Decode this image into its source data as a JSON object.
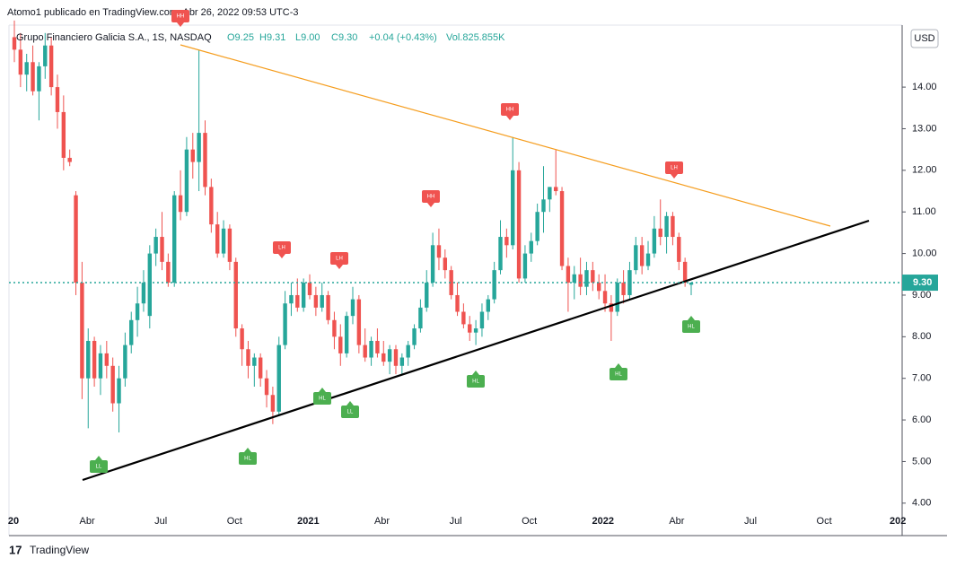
{
  "chart_data": {
    "type": "candlestick",
    "watermark": "Atomo1 publicado en TradingView.com, Abr 26, 2022 09:53 UTC-3",
    "symbol": "Grupo Financiero Galicia S.A., 1S, NASDAQ",
    "ohlc_text": [
      "O9.25",
      "H9.31",
      "L9.00",
      "C9.30",
      "+0.04 (+0.43%)",
      "Vol.825.855K"
    ],
    "currency": "USD",
    "brand": "TradingView",
    "up_color": "#26a69a",
    "down_color": "#ef5350",
    "ylim": [
      3.22,
      15.49
    ],
    "yticks": [
      {
        "value": 4,
        "label": "4.00"
      },
      {
        "value": 5,
        "label": "5.00"
      },
      {
        "value": 6,
        "label": "6.00"
      },
      {
        "value": 7,
        "label": "7.00"
      },
      {
        "value": 8,
        "label": "8.00"
      },
      {
        "value": 9,
        "label": "9.00"
      },
      {
        "value": 10,
        "label": "10.00"
      },
      {
        "value": 11,
        "label": "11.00"
      },
      {
        "value": 12,
        "label": "12.00"
      },
      {
        "value": 13,
        "label": "13.00"
      },
      {
        "value": 14,
        "label": "14.00"
      }
    ],
    "xtick_labels": [
      "20",
      "Abr",
      "Jul",
      "Oct",
      "2021",
      "Abr",
      "Jul",
      "Oct",
      "2022",
      "Abr",
      "Jul",
      "Oct",
      "202"
    ],
    "current_price": {
      "value": 9.3,
      "label": "9.30"
    },
    "annotations": [
      "HH",
      "LH",
      "LH",
      "HH",
      "HH",
      "LH",
      "LL",
      "HL",
      "HL",
      "LL",
      "HL",
      "HL",
      "HL"
    ],
    "candles": [
      [
        15.2,
        15.6,
        14.6,
        14.9
      ],
      [
        14.9,
        15.3,
        14.0,
        14.3
      ],
      [
        14.3,
        14.8,
        13.9,
        14.6
      ],
      [
        14.6,
        15.0,
        13.8,
        13.9
      ],
      [
        13.9,
        14.6,
        13.2,
        14.5
      ],
      [
        14.5,
        15.3,
        14.2,
        15.0
      ],
      [
        15.0,
        15.2,
        13.8,
        14.0
      ],
      [
        14.0,
        14.3,
        13.0,
        13.4
      ],
      [
        13.4,
        13.8,
        12.0,
        12.3
      ],
      [
        12.3,
        12.5,
        12.1,
        12.2
      ],
      [
        11.4,
        11.5,
        9.0,
        9.3
      ],
      [
        9.3,
        9.8,
        6.5,
        7.0
      ],
      [
        7.0,
        8.2,
        5.8,
        7.9
      ],
      [
        7.9,
        8.0,
        6.8,
        7.0
      ],
      [
        7.0,
        7.8,
        6.6,
        7.6
      ],
      [
        7.6,
        7.9,
        7.0,
        7.3
      ],
      [
        7.3,
        7.5,
        6.2,
        6.4
      ],
      [
        6.4,
        7.3,
        5.7,
        7.0
      ],
      [
        7.0,
        8.1,
        6.8,
        7.8
      ],
      [
        7.8,
        8.6,
        7.6,
        8.4
      ],
      [
        8.4,
        9.2,
        8.0,
        8.8
      ],
      [
        8.8,
        9.6,
        8.6,
        9.3
      ],
      [
        8.5,
        10.2,
        8.2,
        10.0
      ],
      [
        10.0,
        10.6,
        9.7,
        10.4
      ],
      [
        10.4,
        11.0,
        9.6,
        9.8
      ],
      [
        9.8,
        10.0,
        9.2,
        9.3
      ],
      [
        9.3,
        11.5,
        9.2,
        11.4
      ],
      [
        11.4,
        12.0,
        10.8,
        11.0
      ],
      [
        11.0,
        12.8,
        10.9,
        12.5
      ],
      [
        12.5,
        12.9,
        11.8,
        12.2
      ],
      [
        12.2,
        14.9,
        11.5,
        12.9
      ],
      [
        12.9,
        13.2,
        11.4,
        11.6
      ],
      [
        11.6,
        11.8,
        10.5,
        10.7
      ],
      [
        10.7,
        11.0,
        9.9,
        10.0
      ],
      [
        10.0,
        10.8,
        9.9,
        10.6
      ],
      [
        10.6,
        10.7,
        9.6,
        9.8
      ],
      [
        9.8,
        9.9,
        8.0,
        8.2
      ],
      [
        8.2,
        8.3,
        7.3,
        7.7
      ],
      [
        7.7,
        7.9,
        7.0,
        7.3
      ],
      [
        7.3,
        7.6,
        6.8,
        7.5
      ],
      [
        7.5,
        7.6,
        6.8,
        7.0
      ],
      [
        7.0,
        7.2,
        6.3,
        6.6
      ],
      [
        6.6,
        6.8,
        5.9,
        6.2
      ],
      [
        6.2,
        8.0,
        6.1,
        7.8
      ],
      [
        7.8,
        9.1,
        7.7,
        8.8
      ],
      [
        8.8,
        9.3,
        8.5,
        9.0
      ],
      [
        9.0,
        9.4,
        8.6,
        8.7
      ],
      [
        8.7,
        9.4,
        8.6,
        9.3
      ],
      [
        9.3,
        9.5,
        8.9,
        9.0
      ],
      [
        9.0,
        9.2,
        8.5,
        8.7
      ],
      [
        8.7,
        9.3,
        8.6,
        9.0
      ],
      [
        9.0,
        9.1,
        8.3,
        8.4
      ],
      [
        8.4,
        8.6,
        7.7,
        8.0
      ],
      [
        8.0,
        8.3,
        7.3,
        7.6
      ],
      [
        7.6,
        8.6,
        7.5,
        8.5
      ],
      [
        8.5,
        9.2,
        8.3,
        8.9
      ],
      [
        8.9,
        9.0,
        7.6,
        7.8
      ],
      [
        7.8,
        8.2,
        7.4,
        7.5
      ],
      [
        7.5,
        8.0,
        7.3,
        7.9
      ],
      [
        7.9,
        8.2,
        7.5,
        7.6
      ],
      [
        7.6,
        7.9,
        7.3,
        7.4
      ],
      [
        7.4,
        7.8,
        7.1,
        7.7
      ],
      [
        7.7,
        7.8,
        7.1,
        7.3
      ],
      [
        7.3,
        7.6,
        7.1,
        7.5
      ],
      [
        7.5,
        7.9,
        7.3,
        7.8
      ],
      [
        7.8,
        8.3,
        7.7,
        8.2
      ],
      [
        8.2,
        8.9,
        8.1,
        8.7
      ],
      [
        8.7,
        9.6,
        8.6,
        9.3
      ],
      [
        9.3,
        10.5,
        9.2,
        10.2
      ],
      [
        10.2,
        10.6,
        9.6,
        9.9
      ],
      [
        9.9,
        10.1,
        9.4,
        9.6
      ],
      [
        9.6,
        9.7,
        8.9,
        9.0
      ],
      [
        9.0,
        9.3,
        8.5,
        8.6
      ],
      [
        8.6,
        8.8,
        8.2,
        8.3
      ],
      [
        8.3,
        8.5,
        7.9,
        8.1
      ],
      [
        8.1,
        8.4,
        7.8,
        8.2
      ],
      [
        8.2,
        8.8,
        8.0,
        8.6
      ],
      [
        8.6,
        9.0,
        8.4,
        8.9
      ],
      [
        8.9,
        9.8,
        8.8,
        9.6
      ],
      [
        9.6,
        10.8,
        9.5,
        10.4
      ],
      [
        10.4,
        10.6,
        9.9,
        10.2
      ],
      [
        10.2,
        12.8,
        10.1,
        12.0
      ],
      [
        12.0,
        12.2,
        9.3,
        9.4
      ],
      [
        9.4,
        10.2,
        9.3,
        10.0
      ],
      [
        10.0,
        10.5,
        9.8,
        10.3
      ],
      [
        10.3,
        11.2,
        10.2,
        11.0
      ],
      [
        11.0,
        12.1,
        10.5,
        11.3
      ],
      [
        11.3,
        11.6,
        11.0,
        11.6
      ],
      [
        11.6,
        12.5,
        11.4,
        11.5
      ],
      [
        11.5,
        11.6,
        9.6,
        9.7
      ],
      [
        9.7,
        9.9,
        8.6,
        9.3
      ],
      [
        9.3,
        9.7,
        8.9,
        9.5
      ],
      [
        9.5,
        9.9,
        9.0,
        9.2
      ],
      [
        9.2,
        9.8,
        9.0,
        9.6
      ],
      [
        9.6,
        9.8,
        9.1,
        9.3
      ],
      [
        9.3,
        9.5,
        8.9,
        9.1
      ],
      [
        9.1,
        9.5,
        8.6,
        8.8
      ],
      [
        8.8,
        9.0,
        7.9,
        8.6
      ],
      [
        8.6,
        9.4,
        8.5,
        9.3
      ],
      [
        9.3,
        9.6,
        8.8,
        9.0
      ],
      [
        9.0,
        9.8,
        8.9,
        9.6
      ],
      [
        9.6,
        10.4,
        9.5,
        10.2
      ],
      [
        10.2,
        10.4,
        9.5,
        9.7
      ],
      [
        9.7,
        10.3,
        9.6,
        10.0
      ],
      [
        10.0,
        10.9,
        9.9,
        10.6
      ],
      [
        10.6,
        11.3,
        10.2,
        10.4
      ],
      [
        10.4,
        11.0,
        10.0,
        10.9
      ],
      [
        10.9,
        11.0,
        10.2,
        10.4
      ],
      [
        10.4,
        10.5,
        9.6,
        9.8
      ],
      [
        9.8,
        9.9,
        9.2,
        9.3
      ],
      [
        9.25,
        9.31,
        9.0,
        9.3
      ]
    ]
  }
}
